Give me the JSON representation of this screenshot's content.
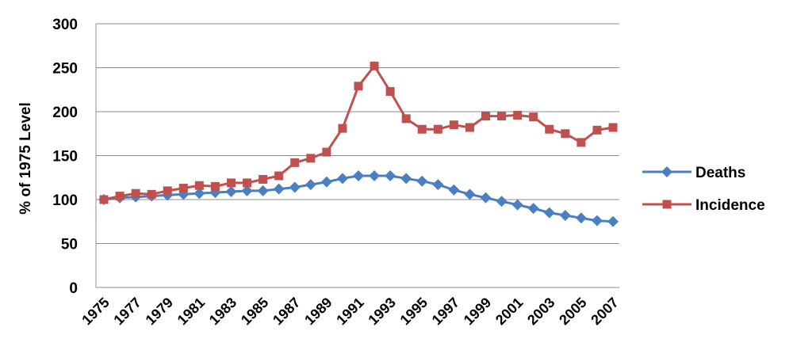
{
  "chart_data": {
    "type": "line",
    "title": "",
    "xlabel": "",
    "ylabel": "% of 1975 Level",
    "ylim": [
      0,
      300
    ],
    "yticks": [
      0,
      50,
      100,
      150,
      200,
      250,
      300
    ],
    "xlim": [
      1975,
      2007
    ],
    "xtick_labels": [
      "1975",
      "1977",
      "1979",
      "1981",
      "1983",
      "1985",
      "1987",
      "1989",
      "1991",
      "1993",
      "1995",
      "1997",
      "1999",
      "2001",
      "2003",
      "2005",
      "2007"
    ],
    "grid": "horizontal",
    "legend_position": "right",
    "x": [
      1975,
      1976,
      1977,
      1978,
      1979,
      1980,
      1981,
      1982,
      1983,
      1984,
      1985,
      1986,
      1987,
      1988,
      1989,
      1990,
      1991,
      1992,
      1993,
      1994,
      1995,
      1996,
      1997,
      1998,
      1999,
      2000,
      2001,
      2002,
      2003,
      2004,
      2005,
      2006,
      2007
    ],
    "series": [
      {
        "name": "Deaths",
        "color": "#4a7fc1",
        "marker": "diamond",
        "values": [
          100,
          102,
          103,
          104,
          105,
          106,
          107,
          108,
          109,
          110,
          110,
          112,
          114,
          117,
          120,
          124,
          127,
          127,
          127,
          124,
          121,
          117,
          111,
          106,
          102,
          98,
          94,
          90,
          85,
          82,
          79,
          76,
          75
        ]
      },
      {
        "name": "Incidence",
        "color": "#c0504d",
        "marker": "square",
        "values": [
          100,
          104,
          107,
          106,
          110,
          113,
          116,
          115,
          119,
          119,
          123,
          127,
          142,
          147,
          154,
          181,
          229,
          252,
          223,
          192,
          180,
          180,
          185,
          182,
          195,
          195,
          196,
          194,
          180,
          175,
          165,
          179,
          182
        ]
      }
    ]
  }
}
